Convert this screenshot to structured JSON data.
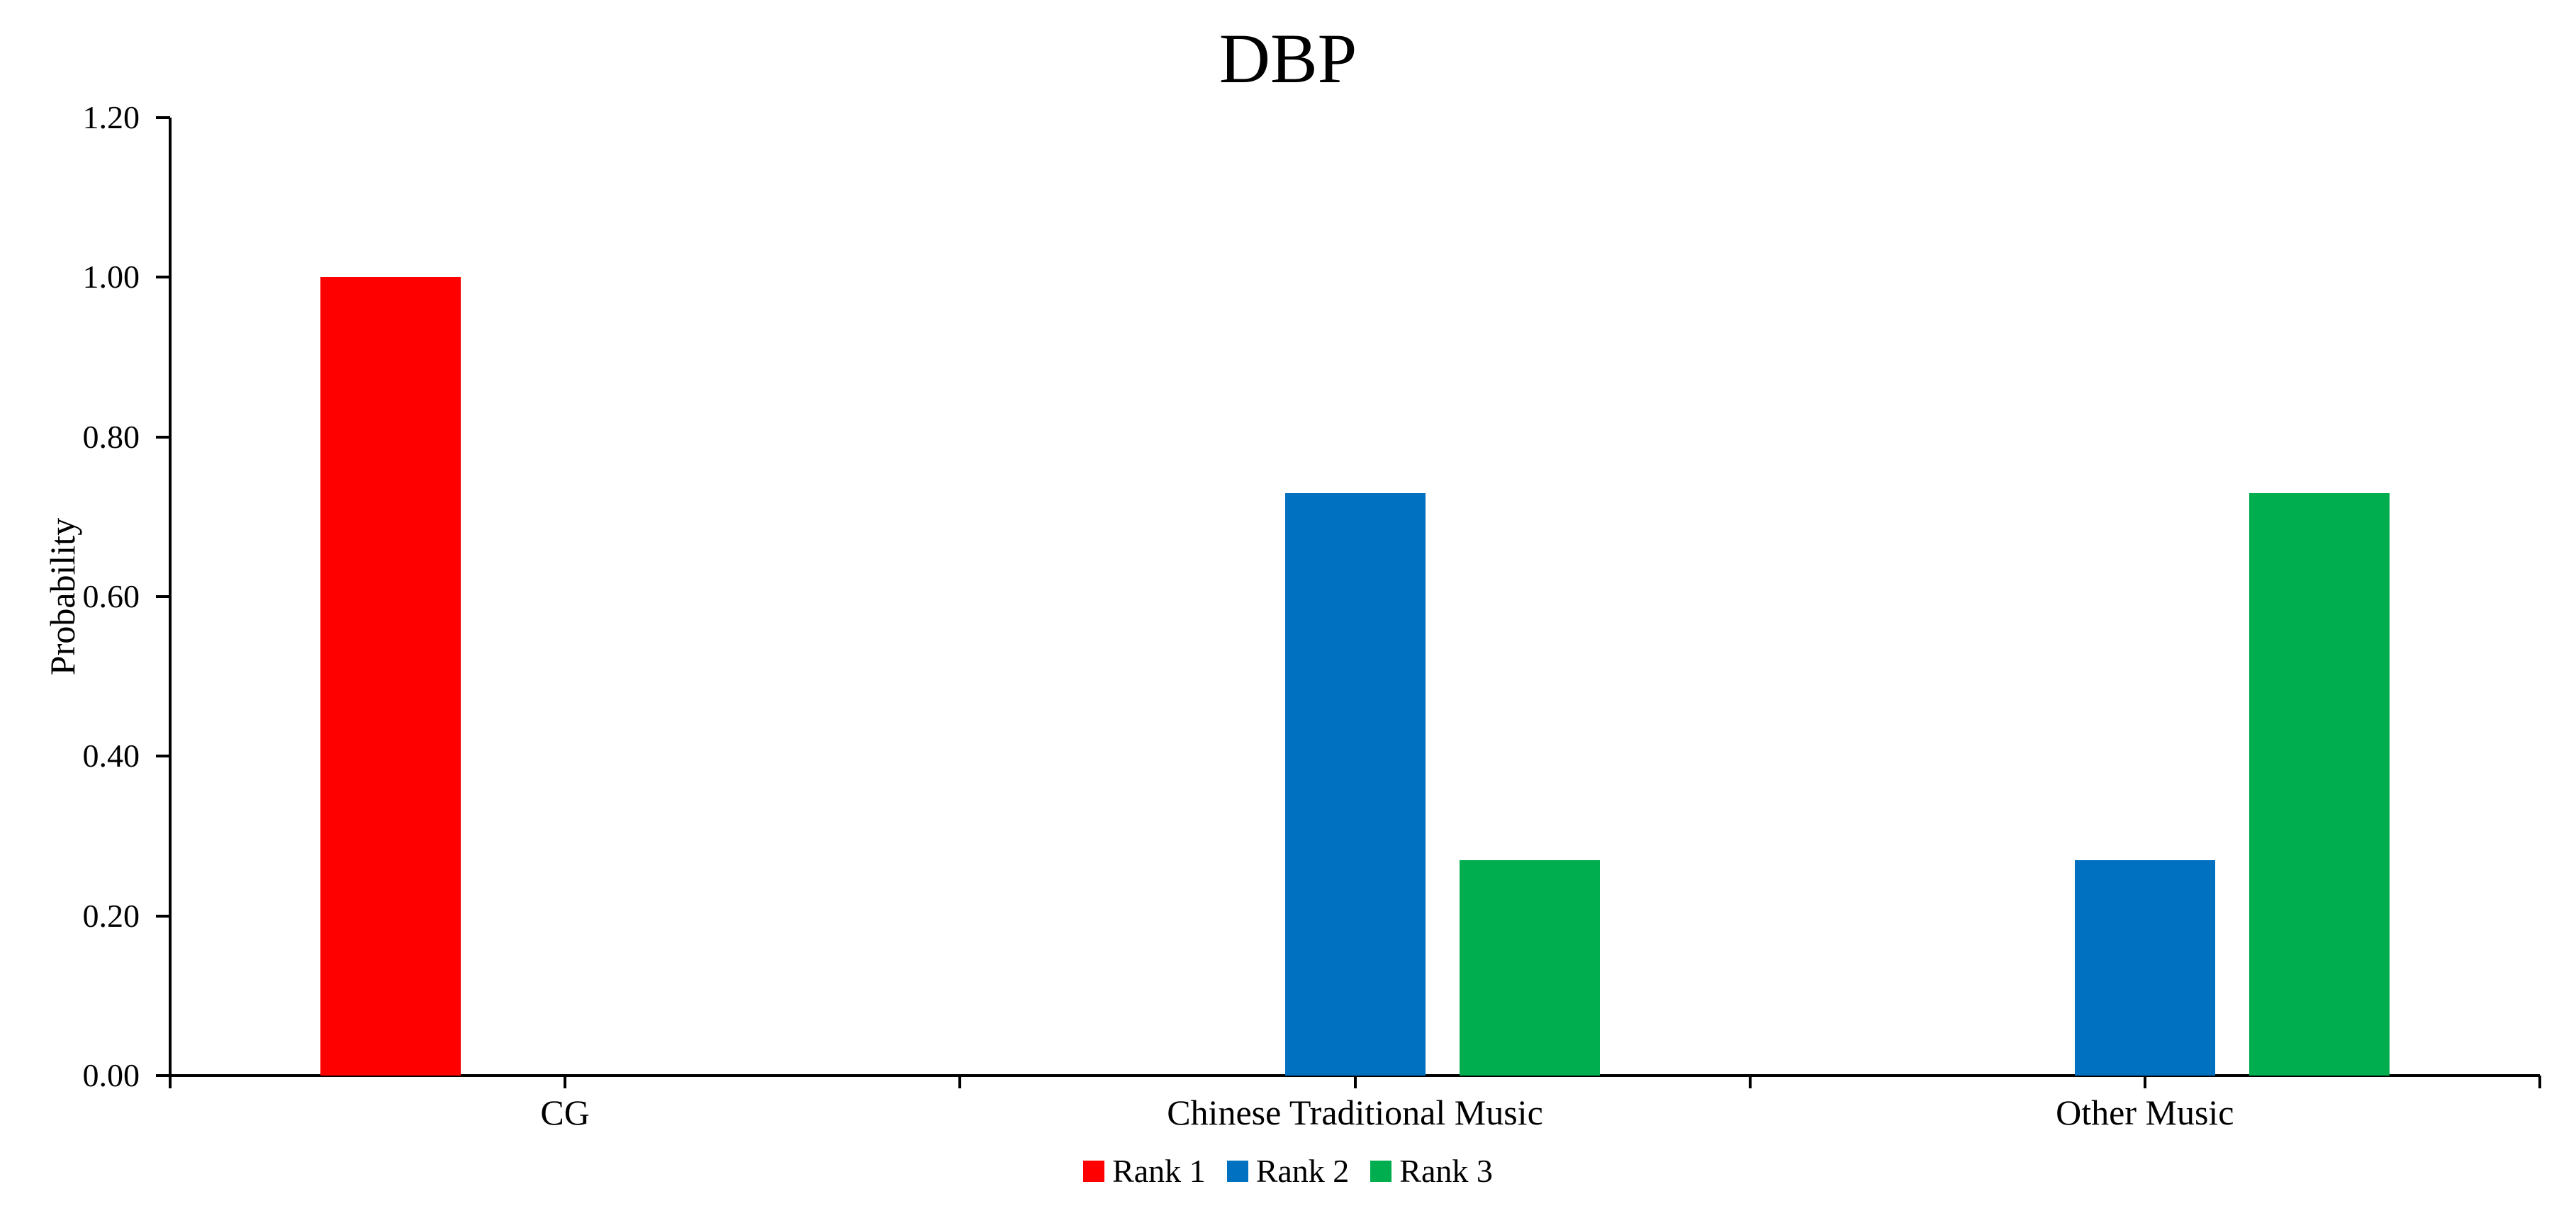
{
  "chart_data": {
    "type": "bar",
    "title": "DBP",
    "xlabel": "",
    "ylabel": "Probability",
    "categories": [
      "CG",
      "Chinese Traditional Music",
      "Other Music"
    ],
    "series": [
      {
        "name": "Rank 1",
        "color": "#FF0000",
        "values": [
          1.0,
          0.0,
          0.0
        ]
      },
      {
        "name": "Rank 2",
        "color": "#0071C1",
        "values": [
          0.0,
          0.73,
          0.27
        ]
      },
      {
        "name": "Rank 3",
        "color": "#00AE50",
        "values": [
          0.0,
          0.27,
          0.73
        ]
      }
    ],
    "ylim": [
      0.0,
      1.2
    ],
    "y_ticks": [
      "0.00",
      "0.20",
      "0.40",
      "0.60",
      "0.80",
      "1.00",
      "1.20"
    ],
    "y_tick_step": 0.2,
    "grid": "off",
    "legend_position": "bottom",
    "axis_color": "#000000",
    "background_color": "#FFFFFF"
  }
}
